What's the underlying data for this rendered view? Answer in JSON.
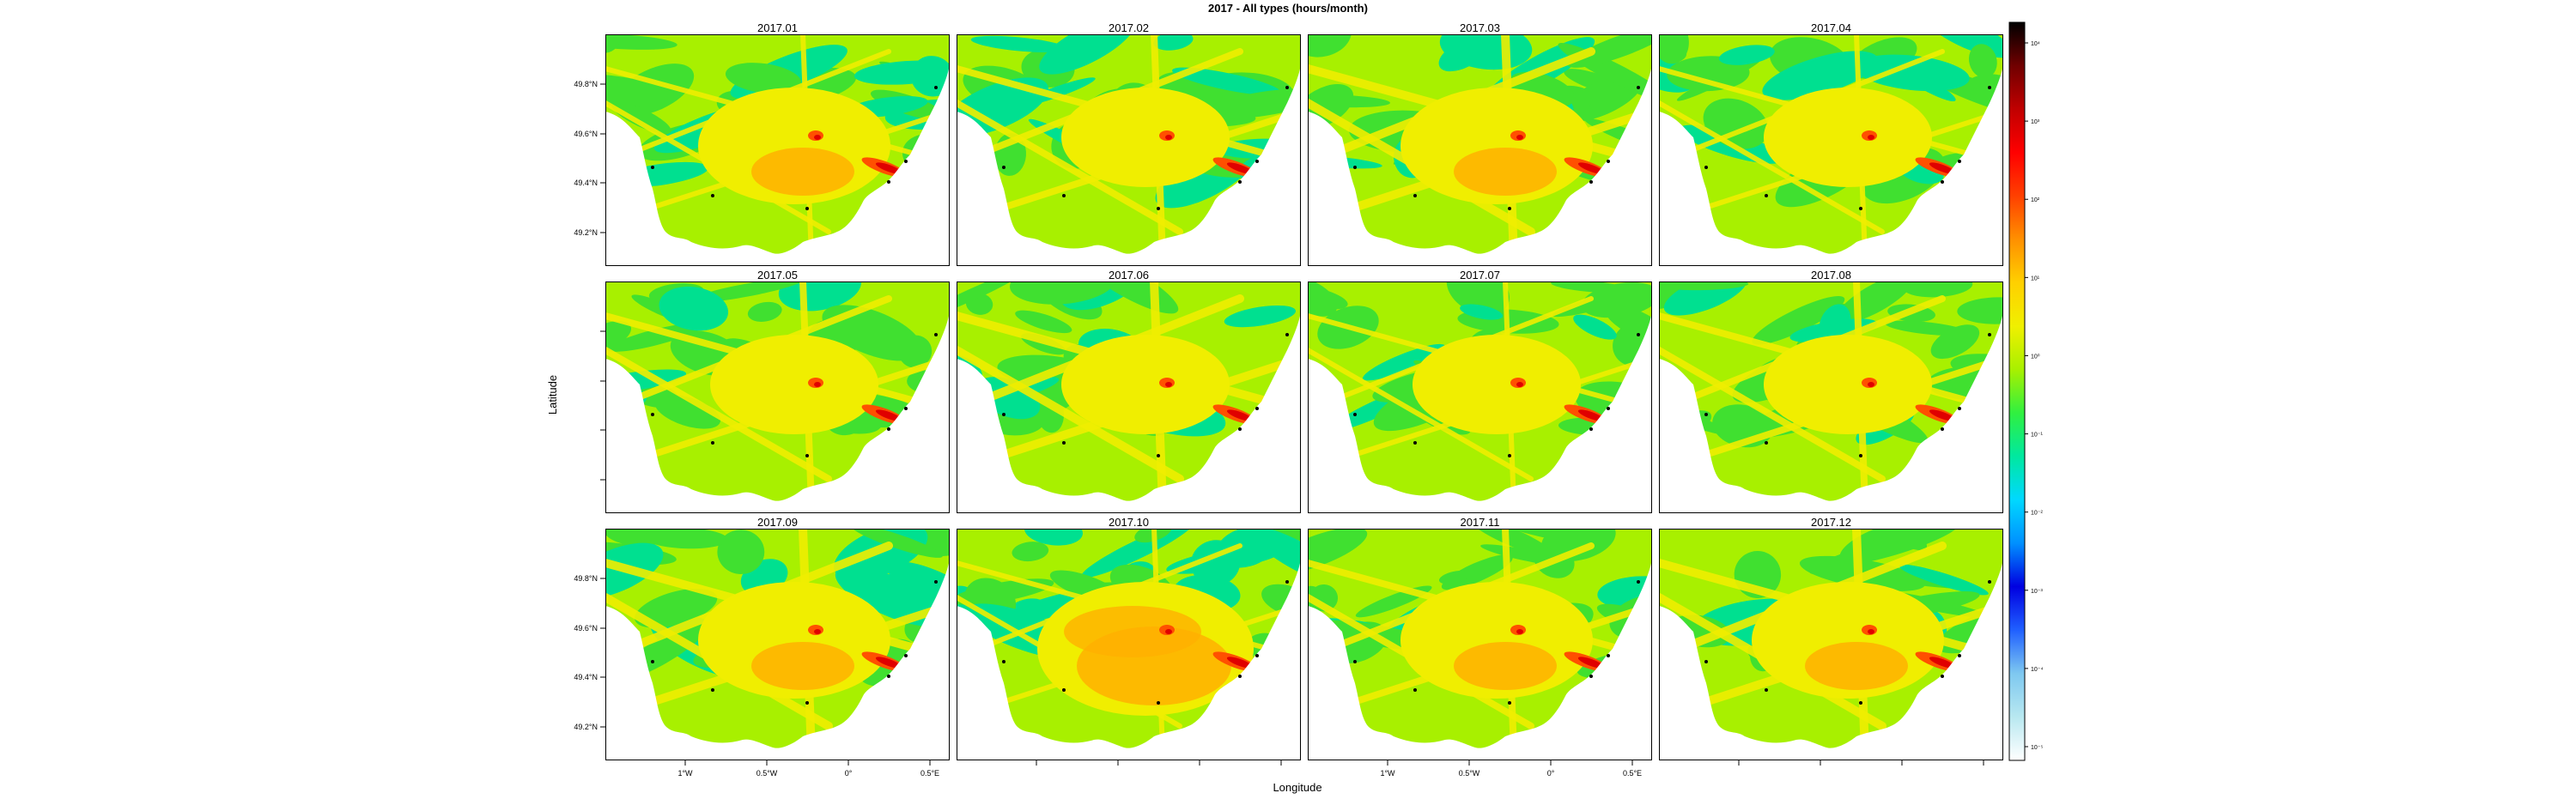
{
  "title": "2017 - All types (hours/month)",
  "xlabel": "Longitude",
  "ylabel": "Latitude",
  "panels": [
    {
      "label": "2017.01",
      "layer": 3
    },
    {
      "label": "2017.02",
      "layer": 2
    },
    {
      "label": "2017.03",
      "layer": 3
    },
    {
      "label": "2017.04",
      "layer": 2
    },
    {
      "label": "2017.05",
      "layer": 2
    },
    {
      "label": "2017.06",
      "layer": 2
    },
    {
      "label": "2017.07",
      "layer": 2
    },
    {
      "label": "2017.08",
      "layer": 2
    },
    {
      "label": "2017.09",
      "layer": 3
    },
    {
      "label": "2017.10",
      "layer": 4
    },
    {
      "label": "2017.11",
      "layer": 3
    },
    {
      "label": "2017.12",
      "layer": 3
    }
  ],
  "yticks": [
    "49.8°N",
    "49.6°N",
    "49.4°N",
    "49.2°N"
  ],
  "xticks": [
    "1°W",
    "0.5°W",
    "0°",
    "0.5°E"
  ],
  "colorbar": {
    "scale": "log",
    "labels": [
      "10⁻⁵",
      "10⁻⁴",
      "10⁻³",
      "10⁻²",
      "10⁻¹",
      "10⁰",
      "10¹",
      "10²",
      "10³",
      "10⁴"
    ],
    "colors": [
      "#ffffff",
      "#b8e8f0",
      "#7ec8f0",
      "#2060ff",
      "#0000e0",
      "#0090ff",
      "#00d8ff",
      "#00e8a0",
      "#30f040",
      "#a8f000",
      "#f0f000",
      "#ffd000",
      "#ff9000",
      "#ff4000",
      "#ff0000",
      "#c00000",
      "#700000",
      "#000000"
    ]
  },
  "map_colors": {
    "sea_low": "#00e090",
    "sea_green": "#40e030",
    "sea_lime": "#a8f000",
    "sea_yellow": "#f0ee00",
    "sea_orange": "#ffb000",
    "hot": "#ff5000",
    "hotter": "#e00000",
    "land": "#ffffff"
  }
}
